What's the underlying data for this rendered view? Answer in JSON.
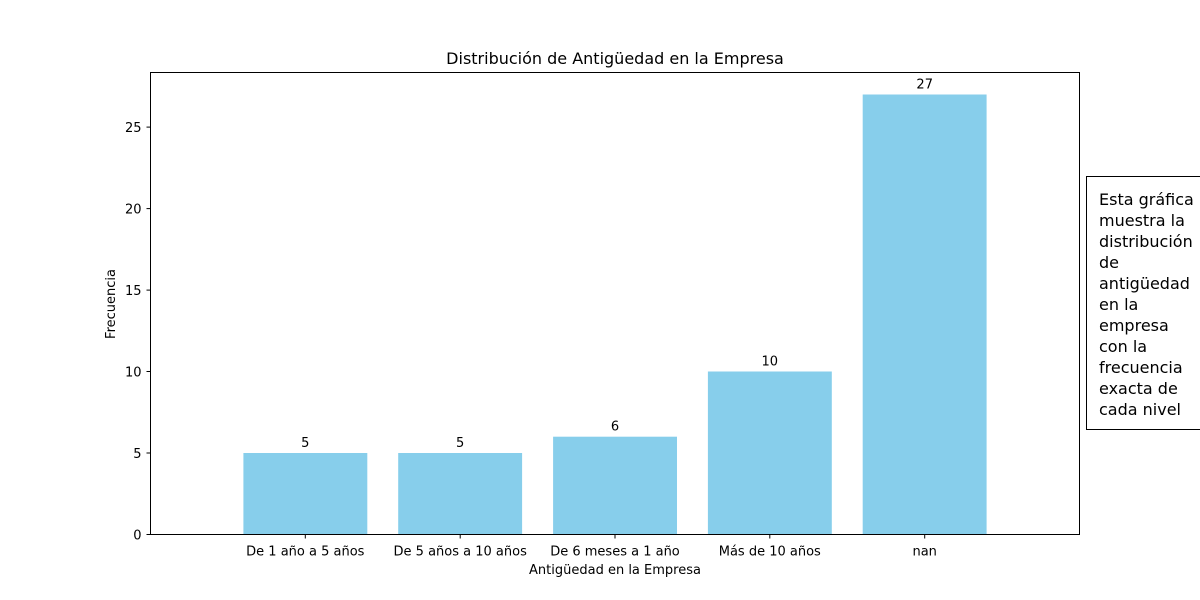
{
  "chart_data": {
    "type": "bar",
    "title": "Distribución de Antigüedad en la Empresa",
    "xlabel": "Antigüedad en la Empresa",
    "ylabel": "Frecuencia",
    "categories": [
      "De 1 año a 5 años",
      "De 5 años a 10 años",
      "De 6 meses a 1 año",
      "Más de 10 años",
      "nan"
    ],
    "values": [
      5,
      5,
      6,
      10,
      27
    ],
    "data_labels": [
      "5",
      "5",
      "6",
      "10",
      "27"
    ],
    "ylim": [
      0,
      28.35
    ],
    "yticks": [
      0,
      5,
      10,
      15,
      20,
      25
    ],
    "ytick_labels": [
      "0",
      "5",
      "10",
      "15",
      "20",
      "25"
    ],
    "bar_color": "#87ceeb",
    "grid": false,
    "annotation": "Esta gráfica\nmuestra la\ndistribución\nde\nantigüedad\nen la\nempresa\ncon la\nfrecuencia\nexacta de\ncada nivel"
  }
}
